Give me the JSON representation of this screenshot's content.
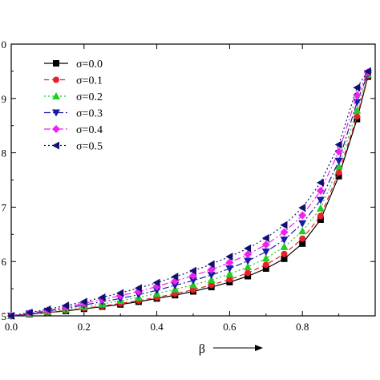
{
  "chart_data": {
    "type": "line",
    "xlabel": "β",
    "ylabel": "",
    "xlim": [
      0.0,
      1.0
    ],
    "ylim": [
      0.5,
      1.0
    ],
    "x_ticks": [
      "0.0",
      "0.2",
      "0.4",
      "0.6",
      "0.8"
    ],
    "y_ticks": [
      "5",
      "6",
      "7",
      "8",
      "9",
      "0"
    ],
    "legend_position": "top-left",
    "series": [
      {
        "name": "σ=0.0",
        "color": "#000000",
        "marker": "square",
        "dash": "solid",
        "x": [
          0.0,
          0.05,
          0.1,
          0.15,
          0.2,
          0.25,
          0.3,
          0.35,
          0.4,
          0.45,
          0.5,
          0.55,
          0.6,
          0.65,
          0.7,
          0.75,
          0.8,
          0.85,
          0.9,
          0.95,
          0.98
        ],
        "y": [
          0.5,
          0.503,
          0.506,
          0.509,
          0.513,
          0.517,
          0.521,
          0.526,
          0.532,
          0.538,
          0.545,
          0.553,
          0.562,
          0.573,
          0.587,
          0.605,
          0.633,
          0.677,
          0.757,
          0.862,
          0.94
        ]
      },
      {
        "name": "σ=0.1",
        "color": "#e8202a",
        "marker": "circle",
        "dash": "dash",
        "x": [
          0.0,
          0.05,
          0.1,
          0.15,
          0.2,
          0.25,
          0.3,
          0.35,
          0.4,
          0.45,
          0.5,
          0.55,
          0.6,
          0.65,
          0.7,
          0.75,
          0.8,
          0.85,
          0.9,
          0.95,
          0.98
        ],
        "y": [
          0.5,
          0.503,
          0.506,
          0.51,
          0.514,
          0.518,
          0.523,
          0.528,
          0.534,
          0.541,
          0.548,
          0.557,
          0.567,
          0.579,
          0.594,
          0.614,
          0.642,
          0.684,
          0.764,
          0.867,
          0.942
        ]
      },
      {
        "name": "σ=0.2",
        "color": "#22cc22",
        "marker": "triangle-up",
        "dash": "dot",
        "x": [
          0.0,
          0.05,
          0.1,
          0.15,
          0.2,
          0.25,
          0.3,
          0.35,
          0.4,
          0.45,
          0.5,
          0.55,
          0.6,
          0.65,
          0.7,
          0.75,
          0.8,
          0.85,
          0.9,
          0.95,
          0.98
        ],
        "y": [
          0.5,
          0.504,
          0.508,
          0.512,
          0.517,
          0.522,
          0.528,
          0.534,
          0.541,
          0.549,
          0.557,
          0.566,
          0.577,
          0.59,
          0.606,
          0.627,
          0.656,
          0.698,
          0.775,
          0.878,
          0.944
        ]
      },
      {
        "name": "σ=0.3",
        "color": "#1a1aa8",
        "marker": "triangle-down",
        "dash": "dashdot",
        "x": [
          0.0,
          0.05,
          0.1,
          0.15,
          0.2,
          0.25,
          0.3,
          0.35,
          0.4,
          0.45,
          0.5,
          0.55,
          0.6,
          0.65,
          0.7,
          0.75,
          0.8,
          0.85,
          0.9,
          0.95,
          0.98
        ],
        "y": [
          0.5,
          0.504,
          0.509,
          0.514,
          0.52,
          0.526,
          0.532,
          0.539,
          0.547,
          0.556,
          0.565,
          0.575,
          0.587,
          0.601,
          0.618,
          0.64,
          0.67,
          0.713,
          0.785,
          0.893,
          0.946
        ]
      },
      {
        "name": "σ=0.4",
        "color": "#ee22ee",
        "marker": "diamond",
        "dash": "dashdot",
        "x": [
          0.0,
          0.05,
          0.1,
          0.15,
          0.2,
          0.25,
          0.3,
          0.35,
          0.4,
          0.45,
          0.5,
          0.55,
          0.6,
          0.65,
          0.7,
          0.75,
          0.8,
          0.85,
          0.9,
          0.95,
          0.98
        ],
        "y": [
          0.5,
          0.505,
          0.51,
          0.516,
          0.523,
          0.53,
          0.537,
          0.545,
          0.554,
          0.564,
          0.574,
          0.585,
          0.598,
          0.613,
          0.631,
          0.654,
          0.685,
          0.73,
          0.802,
          0.906,
          0.948
        ]
      },
      {
        "name": "σ=0.5",
        "color": "#101070",
        "marker": "triangle-left",
        "dash": "dot",
        "x": [
          0.0,
          0.05,
          0.1,
          0.15,
          0.2,
          0.25,
          0.3,
          0.35,
          0.4,
          0.45,
          0.5,
          0.55,
          0.6,
          0.65,
          0.7,
          0.75,
          0.8,
          0.85,
          0.9,
          0.95,
          0.98
        ],
        "y": [
          0.5,
          0.506,
          0.512,
          0.519,
          0.526,
          0.534,
          0.542,
          0.551,
          0.561,
          0.572,
          0.583,
          0.595,
          0.609,
          0.624,
          0.643,
          0.667,
          0.699,
          0.745,
          0.815,
          0.92,
          0.95
        ]
      }
    ]
  }
}
